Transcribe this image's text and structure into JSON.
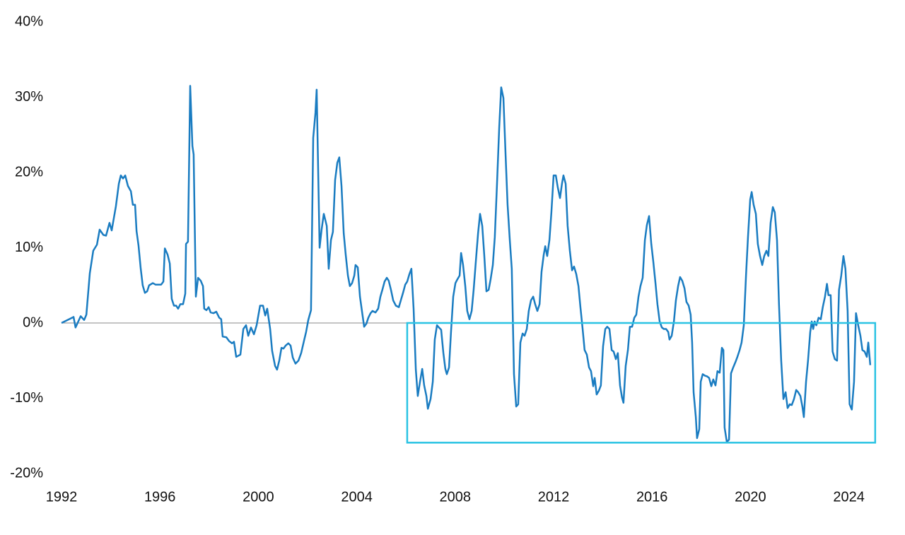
{
  "chart_data": {
    "type": "line",
    "x": [
      1992.0,
      1992.37,
      1992.49,
      1992.57,
      1992.78,
      1992.92,
      1993.01,
      1993.15,
      1993.29,
      1993.44,
      1993.55,
      1993.7,
      1993.81,
      1993.95,
      1994.04,
      1994.21,
      1994.33,
      1994.41,
      1994.5,
      1994.59,
      1994.7,
      1994.82,
      1994.9,
      1994.99,
      1995.05,
      1995.13,
      1995.22,
      1995.3,
      1995.39,
      1995.48,
      1995.56,
      1995.71,
      1995.82,
      1996.05,
      1996.14,
      1996.2,
      1996.31,
      1996.4,
      1996.48,
      1996.57,
      1996.66,
      1996.74,
      1996.83,
      1996.94,
      1997.03,
      1997.06,
      1997.14,
      1997.23,
      1997.32,
      1997.37,
      1997.46,
      1997.55,
      1997.66,
      1997.75,
      1997.8,
      1997.89,
      1997.98,
      1998.06,
      1998.18,
      1998.29,
      1998.41,
      1998.49,
      1998.55,
      1998.7,
      1998.81,
      1998.93,
      1999.01,
      1999.1,
      1999.27,
      1999.39,
      1999.5,
      1999.59,
      1999.7,
      1999.82,
      1999.93,
      2000.07,
      2000.19,
      2000.28,
      2000.36,
      2000.48,
      2000.56,
      2000.68,
      2000.76,
      2000.85,
      2000.94,
      2001.02,
      2001.11,
      2001.22,
      2001.31,
      2001.4,
      2001.51,
      2001.63,
      2001.74,
      2001.86,
      2001.94,
      2002.03,
      2002.14,
      2002.23,
      2002.32,
      2002.37,
      2002.49,
      2002.57,
      2002.66,
      2002.78,
      2002.86,
      2002.95,
      2003.03,
      2003.12,
      2003.21,
      2003.29,
      2003.38,
      2003.47,
      2003.55,
      2003.64,
      2003.72,
      2003.81,
      2003.9,
      2003.95,
      2004.04,
      2004.13,
      2004.21,
      2004.3,
      2004.39,
      2004.47,
      2004.56,
      2004.64,
      2004.76,
      2004.87,
      2004.96,
      2005.04,
      2005.13,
      2005.22,
      2005.3,
      2005.39,
      2005.48,
      2005.59,
      2005.71,
      2005.79,
      2005.88,
      2005.97,
      2006.05,
      2006.14,
      2006.22,
      2006.31,
      2006.4,
      2006.48,
      2006.57,
      2006.66,
      2006.74,
      2006.83,
      2006.89,
      2007.0,
      2007.09,
      2007.17,
      2007.26,
      2007.34,
      2007.43,
      2007.52,
      2007.6,
      2007.66,
      2007.75,
      2007.83,
      2007.92,
      2008.01,
      2008.09,
      2008.18,
      2008.24,
      2008.32,
      2008.41,
      2008.49,
      2008.58,
      2008.67,
      2008.75,
      2008.84,
      2008.93,
      2009.01,
      2009.1,
      2009.18,
      2009.27,
      2009.36,
      2009.44,
      2009.53,
      2009.61,
      2009.7,
      2009.79,
      2009.87,
      2009.96,
      2010.05,
      2010.13,
      2010.22,
      2010.3,
      2010.39,
      2010.48,
      2010.56,
      2010.65,
      2010.74,
      2010.82,
      2010.91,
      2010.99,
      2011.08,
      2011.17,
      2011.25,
      2011.34,
      2011.43,
      2011.51,
      2011.6,
      2011.66,
      2011.74,
      2011.83,
      2011.91,
      2012.0,
      2012.09,
      2012.17,
      2012.26,
      2012.34,
      2012.4,
      2012.49,
      2012.57,
      2012.66,
      2012.75,
      2012.83,
      2012.92,
      2013.01,
      2013.09,
      2013.18,
      2013.26,
      2013.35,
      2013.44,
      2013.52,
      2013.61,
      2013.67,
      2013.75,
      2013.84,
      2013.92,
      2014.01,
      2014.1,
      2014.18,
      2014.27,
      2014.36,
      2014.44,
      2014.53,
      2014.61,
      2014.7,
      2014.78,
      2014.84,
      2014.93,
      2015.02,
      2015.1,
      2015.19,
      2015.28,
      2015.36,
      2015.45,
      2015.53,
      2015.62,
      2015.71,
      2015.79,
      2015.88,
      2015.97,
      2016.05,
      2016.14,
      2016.22,
      2016.31,
      2016.4,
      2016.48,
      2016.57,
      2016.66,
      2016.71,
      2016.8,
      2016.89,
      2016.97,
      2017.06,
      2017.14,
      2017.23,
      2017.32,
      2017.4,
      2017.49,
      2017.57,
      2017.63,
      2017.69,
      2017.78,
      2017.83,
      2017.92,
      2017.98,
      2018.06,
      2018.15,
      2018.24,
      2018.32,
      2018.41,
      2018.49,
      2018.58,
      2018.66,
      2018.75,
      2018.84,
      2018.9,
      2018.95,
      2019.04,
      2019.13,
      2019.21,
      2019.3,
      2019.39,
      2019.47,
      2019.56,
      2019.64,
      2019.73,
      2019.82,
      2019.9,
      2019.99,
      2020.05,
      2020.13,
      2020.22,
      2020.3,
      2020.39,
      2020.48,
      2020.56,
      2020.65,
      2020.73,
      2020.82,
      2020.91,
      2020.99,
      2021.08,
      2021.16,
      2021.25,
      2021.34,
      2021.43,
      2021.51,
      2021.6,
      2021.68,
      2021.77,
      2021.86,
      2021.94,
      2022.03,
      2022.11,
      2022.17,
      2022.26,
      2022.34,
      2022.43,
      2022.49,
      2022.55,
      2022.61,
      2022.68,
      2022.77,
      2022.86,
      2022.94,
      2023.03,
      2023.11,
      2023.17,
      2023.26,
      2023.34,
      2023.43,
      2023.52,
      2023.6,
      2023.69,
      2023.78,
      2023.86,
      2023.95,
      2024.03,
      2024.12,
      2024.21,
      2024.29,
      2024.38,
      2024.47,
      2024.55,
      2024.64,
      2024.73,
      2024.79,
      2024.87
    ],
    "values": [
      0,
      0.6,
      0.8,
      -0.6,
      0.9,
      0.4,
      1.1,
      6.6,
      9.6,
      10.4,
      12.4,
      11.7,
      11.6,
      13.3,
      12.3,
      15.5,
      18.5,
      19.6,
      19.2,
      19.6,
      18.2,
      17.5,
      15.7,
      15.7,
      12.2,
      10.3,
      7.2,
      5.0,
      4.0,
      4.2,
      5.0,
      5.3,
      5.1,
      5.1,
      5.5,
      9.9,
      9.1,
      7.9,
      3.2,
      2.3,
      2.3,
      1.9,
      2.5,
      2.5,
      3.9,
      10.5,
      10.8,
      31.5,
      23.5,
      22.4,
      3.5,
      6.0,
      5.6,
      4.9,
      1.9,
      1.7,
      2.1,
      1.4,
      1.3,
      1.5,
      0.7,
      0.5,
      -1.8,
      -1.9,
      -2.4,
      -2.7,
      -2.5,
      -4.5,
      -4.2,
      -0.8,
      -0.3,
      -1.7,
      -0.6,
      -1.5,
      -0.3,
      2.3,
      2.3,
      1.0,
      1.9,
      -0.8,
      -3.7,
      -5.7,
      -6.2,
      -5.0,
      -3.3,
      -3.4,
      -3.0,
      -2.7,
      -3.0,
      -4.6,
      -5.4,
      -5.0,
      -4.0,
      -2.3,
      -1.2,
      0.4,
      1.7,
      24.6,
      27.9,
      31.0,
      10.0,
      12.4,
      14.5,
      12.9,
      7.2,
      11.0,
      12.1,
      19.0,
      21.3,
      22.0,
      18.2,
      11.9,
      9.1,
      6.3,
      4.9,
      5.3,
      6.3,
      7.7,
      7.4,
      3.5,
      1.6,
      -0.5,
      -0.1,
      0.7,
      1.3,
      1.6,
      1.4,
      1.9,
      3.5,
      4.4,
      5.5,
      6.0,
      5.6,
      4.4,
      3.0,
      2.3,
      2.1,
      3.0,
      4.0,
      5.1,
      5.5,
      6.5,
      7.2,
      1.9,
      -6.2,
      -9.7,
      -7.8,
      -6.1,
      -8.3,
      -9.7,
      -11.4,
      -10.1,
      -7.8,
      -2.2,
      -0.3,
      -0.6,
      -0.9,
      -4.0,
      -6.1,
      -6.8,
      -5.9,
      -1.2,
      3.5,
      5.3,
      5.8,
      6.3,
      9.3,
      7.7,
      4.9,
      1.6,
      0.5,
      1.6,
      4.4,
      8.2,
      11.9,
      14.5,
      12.9,
      9.1,
      4.2,
      4.4,
      5.8,
      7.7,
      11.4,
      18.5,
      26.0,
      31.3,
      29.9,
      22.2,
      15.7,
      11.0,
      7.2,
      -6.8,
      -11.1,
      -10.8,
      -2.6,
      -1.4,
      -1.7,
      -0.8,
      1.6,
      3.0,
      3.5,
      2.5,
      1.6,
      2.5,
      6.8,
      9.1,
      10.2,
      8.9,
      11.0,
      14.7,
      19.6,
      19.6,
      18.0,
      16.6,
      18.5,
      19.6,
      18.5,
      12.9,
      9.6,
      7.0,
      7.5,
      6.5,
      4.9,
      2.1,
      -0.8,
      -3.6,
      -4.2,
      -5.9,
      -6.4,
      -8.4,
      -7.3,
      -9.5,
      -9.0,
      -8.3,
      -3.1,
      -0.8,
      -0.5,
      -0.8,
      -3.6,
      -3.8,
      -4.8,
      -4.0,
      -8.3,
      -9.9,
      -10.6,
      -5.7,
      -3.6,
      -0.5,
      -0.5,
      0.7,
      1.1,
      3.5,
      4.9,
      6.0,
      11.0,
      13.0,
      14.2,
      10.5,
      8.2,
      5.3,
      2.5,
      0.2,
      -0.6,
      -0.8,
      -0.8,
      -1.2,
      -2.2,
      -1.7,
      0.2,
      3.0,
      4.9,
      6.1,
      5.6,
      4.6,
      2.8,
      2.3,
      1.1,
      -2.6,
      -9.2,
      -12.5,
      -15.3,
      -14.1,
      -7.8,
      -6.8,
      -7.0,
      -7.1,
      -7.3,
      -8.4,
      -7.5,
      -8.3,
      -6.4,
      -6.6,
      -3.3,
      -3.6,
      -13.9,
      -15.8,
      -15.5,
      -6.7,
      -5.9,
      -5.2,
      -4.5,
      -3.6,
      -2.6,
      -0.3,
      6.3,
      11.4,
      16.4,
      17.4,
      15.7,
      14.5,
      10.5,
      8.9,
      7.7,
      8.9,
      9.6,
      8.9,
      13.3,
      15.4,
      14.7,
      11.0,
      2.5,
      -5.0,
      -10.1,
      -9.2,
      -11.3,
      -10.8,
      -10.9,
      -10.1,
      -8.9,
      -9.2,
      -9.7,
      -11.1,
      -12.5,
      -7.8,
      -5.0,
      -1.2,
      0.2,
      -0.8,
      0.2,
      -0.3,
      0.7,
      0.5,
      2.1,
      3.5,
      5.2,
      3.7,
      3.7,
      -3.8,
      -4.8,
      -5.0,
      4.4,
      6.3,
      8.9,
      7.2,
      1.6,
      -10.8,
      -11.5,
      -7.8,
      1.3,
      -0.3,
      -1.7,
      -3.6,
      -3.8,
      -4.5,
      -2.6,
      -5.6
    ],
    "color": "#1a7cc1",
    "xlim": [
      1992,
      2025.2
    ],
    "xticks": [
      1992,
      1996,
      2000,
      2004,
      2008,
      2012,
      2016,
      2020,
      2024
    ],
    "ylim": [
      -20,
      40
    ],
    "yticks": [
      {
        "value": -20,
        "label": "-20%"
      },
      {
        "value": -10,
        "label": "-10%"
      },
      {
        "value": 0,
        "label": "0%"
      },
      {
        "value": 10,
        "label": "10%"
      },
      {
        "value": 20,
        "label": "20%"
      },
      {
        "value": 30,
        "label": "30%"
      },
      {
        "value": 40,
        "label": "40%"
      }
    ],
    "highlight": {
      "x": [
        2006.05,
        2025.07
      ],
      "y": [
        -15.9,
        0
      ],
      "color": "#2bc3e3"
    }
  }
}
